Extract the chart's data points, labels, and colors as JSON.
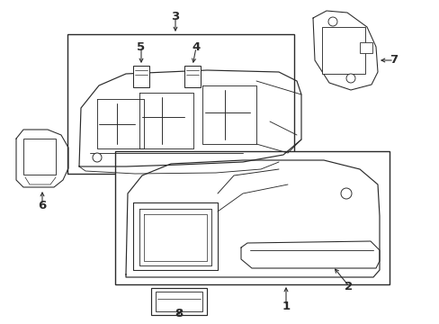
{
  "background": "#ffffff",
  "line_color": "#2a2a2a",
  "fig_width": 4.89,
  "fig_height": 3.6,
  "dpi": 100,
  "lw": 0.85,
  "fs": 9.5
}
